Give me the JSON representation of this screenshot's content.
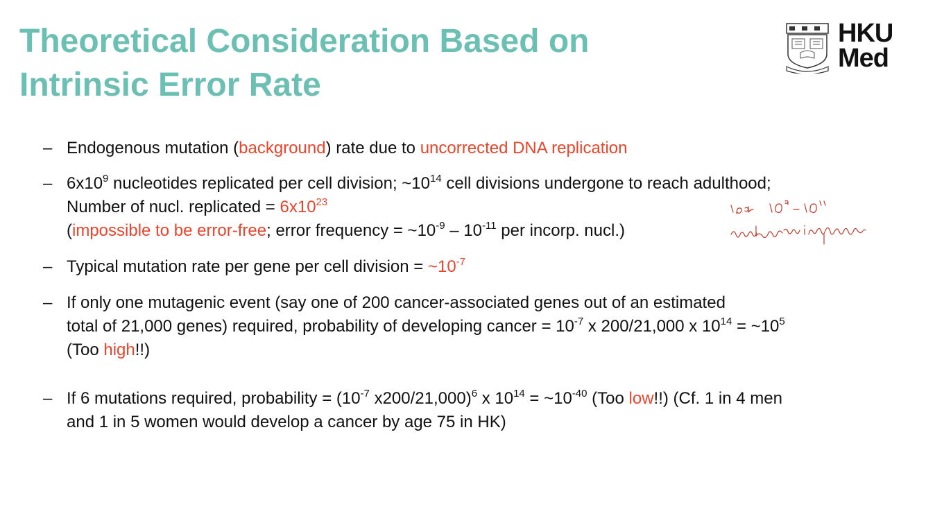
{
  "title": {
    "line1": "Theoretical Consideration Based on",
    "line2": "Intrinsic Error Rate"
  },
  "logo": {
    "line1": "HKU",
    "line2": "Med",
    "crest_icon": "university-crest-icon"
  },
  "bullet_marker": "–",
  "b1": {
    "t1": "Endogenous mutation (",
    "t2": "background",
    "t3": ") rate due to ",
    "t4": "uncorrected DNA replication"
  },
  "b2": {
    "l1a": "6x10",
    "l1b": "9",
    "l1c": " nucleotides replicated per cell division; ~10",
    "l1d": "14",
    "l1e": " cell divisions undergone to reach adulthood;",
    "l2a": "Number of nucl. replicated = ",
    "l2b": "6x10",
    "l2c": "23",
    "l3a": "(",
    "l3b": "impossible to be error-free",
    "l3c": "; error frequency = ~10",
    "l3d": "-9",
    "l3e": " – 10",
    "l3f": "-11",
    "l3g": " per incorp. nucl.)"
  },
  "b3": {
    "t1": "Typical mutation rate per gene per cell division = ",
    "t2": "~10",
    "t3": "-7"
  },
  "b4": {
    "l1": "If only one mutagenic event (say one of 200 cancer-associated genes out of an estimated",
    "l2a": "total of 21,000 genes) required, probability of developing cancer = 10",
    "l2b": "-7",
    "l2c": " x 200/21,000 x 10",
    "l2d": "14",
    "l2e": " = ~10",
    "l2f": "5",
    "l3a": "(Too ",
    "l3b": "high",
    "l3c": "!!)"
  },
  "b5": {
    "l1a": "If 6 mutations required, probability = (10",
    "l1b": "-7",
    "l1c": " x200/21,000)",
    "l1d": "6",
    "l1e": " x 10",
    "l1f": "14",
    "l1g": " = ~10",
    "l1h": "-40",
    "l1i": " (Too ",
    "l1j": "low",
    "l1k": "!!) (Cf. 1 in 4 men",
    "l2": "and 1 in 5 women would develop a cancer by age 75 in HK)"
  },
  "colors": {
    "title": "#6cbfb3",
    "highlight": "#e8452c",
    "annotation": "#c0392b"
  }
}
